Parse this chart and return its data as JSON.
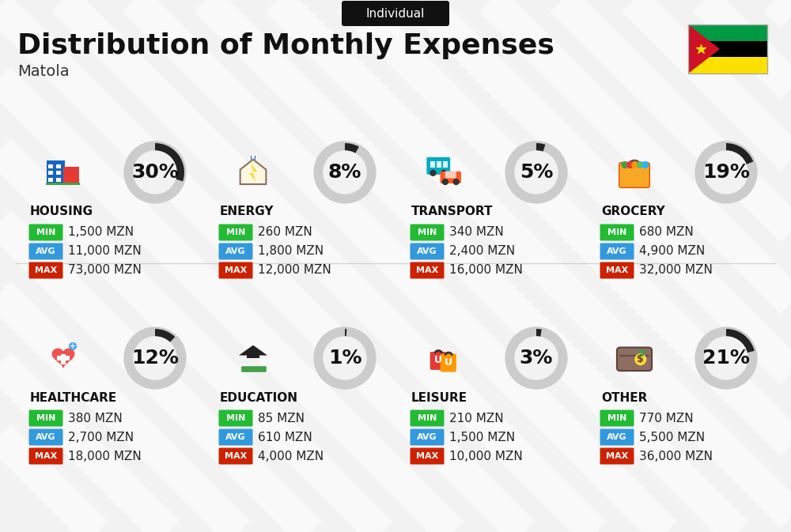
{
  "title": "Distribution of Monthly Expenses",
  "subtitle": "Individual",
  "city": "Matola",
  "bg_color": "#f2f2f2",
  "categories": [
    {
      "name": "HOUSING",
      "percent": 30,
      "min_val": "1,500 MZN",
      "avg_val": "11,000 MZN",
      "max_val": "73,000 MZN",
      "icon_type": "housing",
      "row": 0,
      "col": 0
    },
    {
      "name": "ENERGY",
      "percent": 8,
      "min_val": "260 MZN",
      "avg_val": "1,800 MZN",
      "max_val": "12,000 MZN",
      "icon_type": "energy",
      "row": 0,
      "col": 1
    },
    {
      "name": "TRANSPORT",
      "percent": 5,
      "min_val": "340 MZN",
      "avg_val": "2,400 MZN",
      "max_val": "16,000 MZN",
      "icon_type": "transport",
      "row": 0,
      "col": 2
    },
    {
      "name": "GROCERY",
      "percent": 19,
      "min_val": "680 MZN",
      "avg_val": "4,900 MZN",
      "max_val": "32,000 MZN",
      "icon_type": "grocery",
      "row": 0,
      "col": 3
    },
    {
      "name": "HEALTHCARE",
      "percent": 12,
      "min_val": "380 MZN",
      "avg_val": "2,700 MZN",
      "max_val": "18,000 MZN",
      "icon_type": "healthcare",
      "row": 1,
      "col": 0
    },
    {
      "name": "EDUCATION",
      "percent": 1,
      "min_val": "85 MZN",
      "avg_val": "610 MZN",
      "max_val": "4,000 MZN",
      "icon_type": "education",
      "row": 1,
      "col": 1
    },
    {
      "name": "LEISURE",
      "percent": 3,
      "min_val": "210 MZN",
      "avg_val": "1,500 MZN",
      "max_val": "10,000 MZN",
      "icon_type": "leisure",
      "row": 1,
      "col": 2
    },
    {
      "name": "OTHER",
      "percent": 21,
      "min_val": "770 MZN",
      "avg_val": "5,500 MZN",
      "max_val": "36,000 MZN",
      "icon_type": "other",
      "row": 1,
      "col": 3
    }
  ],
  "color_min": "#22bb33",
  "color_avg": "#3399dd",
  "color_max": "#cc2200",
  "title_fontsize": 26,
  "subtitle_fontsize": 11,
  "city_fontsize": 14,
  "cat_fontsize": 11,
  "val_fontsize": 11,
  "pct_fontsize": 18,
  "circle_bg": "#cccccc",
  "circle_fg": "#222222",
  "stripe_color": "#ffffff",
  "stripe_alpha": 0.55,
  "stripe_lw": 30
}
